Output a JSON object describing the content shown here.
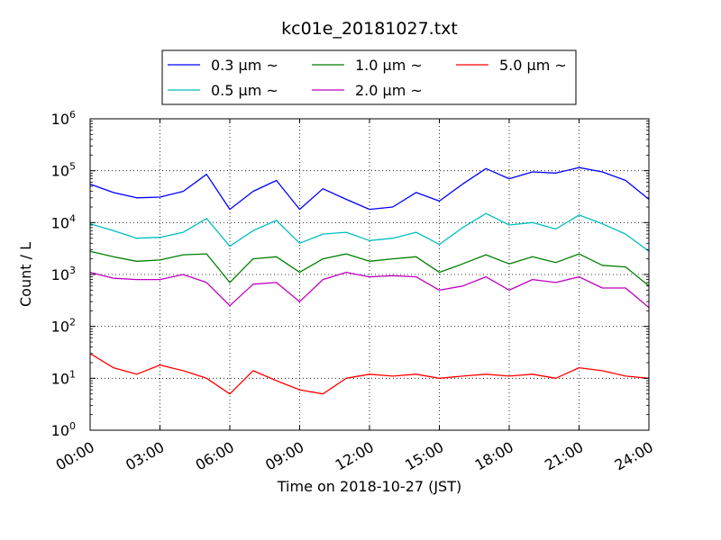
{
  "chart_data": {
    "type": "line",
    "title": "kc01e_20181027.txt",
    "xlabel": "Time on 2018-10-27 (JST)",
    "ylabel": "Count / L",
    "yscale": "log",
    "ylim": [
      1,
      1000000
    ],
    "xlim": [
      "00:00",
      "24:00"
    ],
    "x_ticks": [
      "00:00",
      "03:00",
      "06:00",
      "09:00",
      "12:00",
      "15:00",
      "18:00",
      "21:00",
      "24:00"
    ],
    "y_ticks": [
      {
        "base": "10",
        "exp": "0"
      },
      {
        "base": "10",
        "exp": "1"
      },
      {
        "base": "10",
        "exp": "2"
      },
      {
        "base": "10",
        "exp": "3"
      },
      {
        "base": "10",
        "exp": "4"
      },
      {
        "base": "10",
        "exp": "5"
      },
      {
        "base": "10",
        "exp": "6"
      }
    ],
    "grid": true,
    "legend_position": "top",
    "x_hours": [
      0,
      1,
      2,
      3,
      4,
      5,
      6,
      7,
      8,
      9,
      10,
      11,
      12,
      13,
      14,
      15,
      16,
      17,
      18,
      19,
      20,
      21,
      22,
      23,
      24
    ],
    "series": [
      {
        "name": "0.3 μm ~",
        "color": "#0000ff",
        "values": [
          55000,
          38000,
          30000,
          31000,
          40000,
          85000,
          18000,
          40000,
          65000,
          18000,
          45000,
          28000,
          18000,
          20000,
          38000,
          26000,
          55000,
          110000,
          70000,
          95000,
          90000,
          115000,
          95000,
          65000,
          28000
        ]
      },
      {
        "name": "0.5 μm ~",
        "color": "#00bfbf",
        "values": [
          9500,
          7000,
          5000,
          5200,
          6500,
          12000,
          3500,
          7000,
          11000,
          4000,
          6000,
          6500,
          4500,
          5000,
          6500,
          3800,
          8000,
          15000,
          9000,
          10000,
          7500,
          14000,
          9500,
          6000,
          2800
        ]
      },
      {
        "name": "1.0 μm ~",
        "color": "#008000",
        "values": [
          2800,
          2200,
          1800,
          1900,
          2400,
          2500,
          700,
          2000,
          2200,
          1100,
          2000,
          2500,
          1800,
          2000,
          2200,
          1100,
          1600,
          2400,
          1600,
          2200,
          1700,
          2500,
          1500,
          1400,
          600
        ]
      },
      {
        "name": "2.0 μm ~",
        "color": "#bf00bf",
        "values": [
          1100,
          850,
          800,
          800,
          1000,
          700,
          250,
          650,
          700,
          300,
          800,
          1100,
          900,
          950,
          900,
          500,
          600,
          900,
          500,
          800,
          700,
          900,
          550,
          550,
          230
        ]
      },
      {
        "name": "5.0 μm ~",
        "color": "#ff0000",
        "values": [
          30,
          16,
          12,
          18,
          14,
          10,
          5,
          14,
          9,
          6,
          5,
          10,
          12,
          11,
          12,
          10,
          11,
          12,
          11,
          12,
          10,
          16,
          14,
          11,
          10
        ]
      }
    ]
  }
}
